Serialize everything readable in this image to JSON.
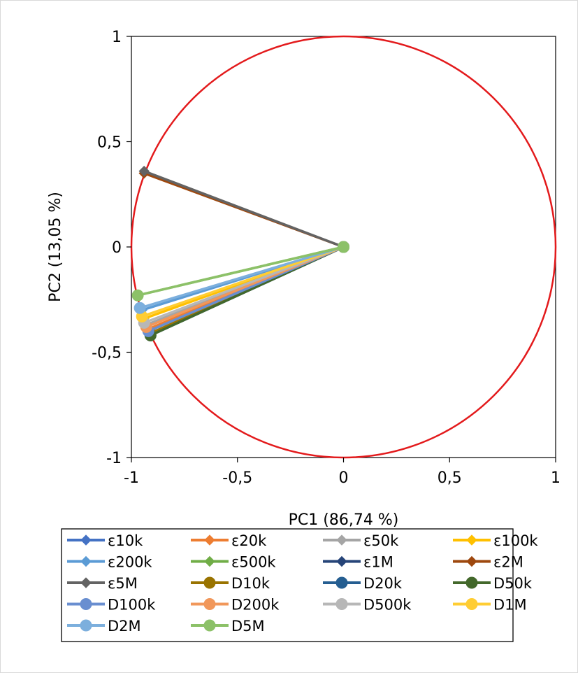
{
  "chart_data": {
    "type": "scatter",
    "xlabel": "PC1 (86,74 %)",
    "ylabel": "PC2 (13,05 %)",
    "xlim": [
      -1,
      1
    ],
    "ylim": [
      -1,
      1
    ],
    "x_ticks": [
      "-1",
      "-0,5",
      "0",
      "0,5",
      "1"
    ],
    "y_ticks": [
      "1",
      "0,5",
      "0",
      "-0,5",
      "-1"
    ],
    "x_tick_values": [
      -1,
      -0.5,
      0,
      0.5,
      1
    ],
    "y_tick_values": [
      1,
      0.5,
      0,
      -0.5,
      -1
    ],
    "grid": false,
    "legend_position": "bottom",
    "circle": {
      "center": [
        0,
        0
      ],
      "radius": 1,
      "color": "#e31a1c"
    },
    "series": [
      {
        "name": "ε10k",
        "marker": "diamond",
        "color": "#4472c4",
        "points": [
          [
            0,
            0
          ],
          [
            -0.92,
            -0.4
          ]
        ]
      },
      {
        "name": "ε20k",
        "marker": "diamond",
        "color": "#ed7d31",
        "points": [
          [
            0,
            0
          ],
          [
            -0.92,
            -0.39
          ]
        ]
      },
      {
        "name": "ε50k",
        "marker": "diamond",
        "color": "#a5a5a5",
        "points": [
          [
            0,
            0
          ],
          [
            -0.93,
            -0.37
          ]
        ]
      },
      {
        "name": "ε100k",
        "marker": "diamond",
        "color": "#ffc000",
        "points": [
          [
            0,
            0
          ],
          [
            -0.94,
            -0.34
          ]
        ]
      },
      {
        "name": "ε200k",
        "marker": "diamond",
        "color": "#5b9bd5",
        "points": [
          [
            0,
            0
          ],
          [
            -0.95,
            -0.3
          ]
        ]
      },
      {
        "name": "ε500k",
        "marker": "diamond",
        "color": "#70ad47",
        "points": [
          [
            0,
            0
          ],
          [
            -0.97,
            -0.23
          ]
        ]
      },
      {
        "name": "ε1M",
        "marker": "diamond",
        "color": "#264478",
        "points": [
          [
            0,
            0
          ],
          [
            -0.91,
            -0.42
          ]
        ]
      },
      {
        "name": "ε2M",
        "marker": "diamond",
        "color": "#9e480e",
        "points": [
          [
            0,
            0
          ],
          [
            -0.94,
            0.35
          ]
        ]
      },
      {
        "name": "ε5M",
        "marker": "diamond",
        "color": "#636363",
        "points": [
          [
            0,
            0
          ],
          [
            -0.94,
            0.36
          ]
        ]
      },
      {
        "name": "D10k",
        "marker": "circle",
        "color": "#997300",
        "points": [
          [
            0,
            0
          ],
          [
            -0.91,
            -0.41
          ]
        ]
      },
      {
        "name": "D20k",
        "marker": "circle",
        "color": "#255e91",
        "points": [
          [
            0,
            0
          ],
          [
            -0.91,
            -0.42
          ]
        ]
      },
      {
        "name": "D50k",
        "marker": "circle",
        "color": "#43682b",
        "points": [
          [
            0,
            0
          ],
          [
            -0.91,
            -0.42
          ]
        ]
      },
      {
        "name": "D100k",
        "marker": "circle",
        "color": "#698ed0",
        "points": [
          [
            0,
            0
          ],
          [
            -0.92,
            -0.4
          ]
        ]
      },
      {
        "name": "D200k",
        "marker": "circle",
        "color": "#f1975a",
        "points": [
          [
            0,
            0
          ],
          [
            -0.93,
            -0.38
          ]
        ]
      },
      {
        "name": "D500k",
        "marker": "circle",
        "color": "#b7b7b7",
        "points": [
          [
            0,
            0
          ],
          [
            -0.94,
            -0.36
          ]
        ]
      },
      {
        "name": "D1M",
        "marker": "circle",
        "color": "#ffcd33",
        "points": [
          [
            0,
            0
          ],
          [
            -0.95,
            -0.33
          ]
        ]
      },
      {
        "name": "D2M",
        "marker": "circle",
        "color": "#7cafdd",
        "points": [
          [
            0,
            0
          ],
          [
            -0.96,
            -0.29
          ]
        ]
      },
      {
        "name": "D5M",
        "marker": "circle",
        "color": "#8cc168",
        "points": [
          [
            0,
            0
          ],
          [
            -0.97,
            -0.23
          ]
        ]
      }
    ]
  }
}
